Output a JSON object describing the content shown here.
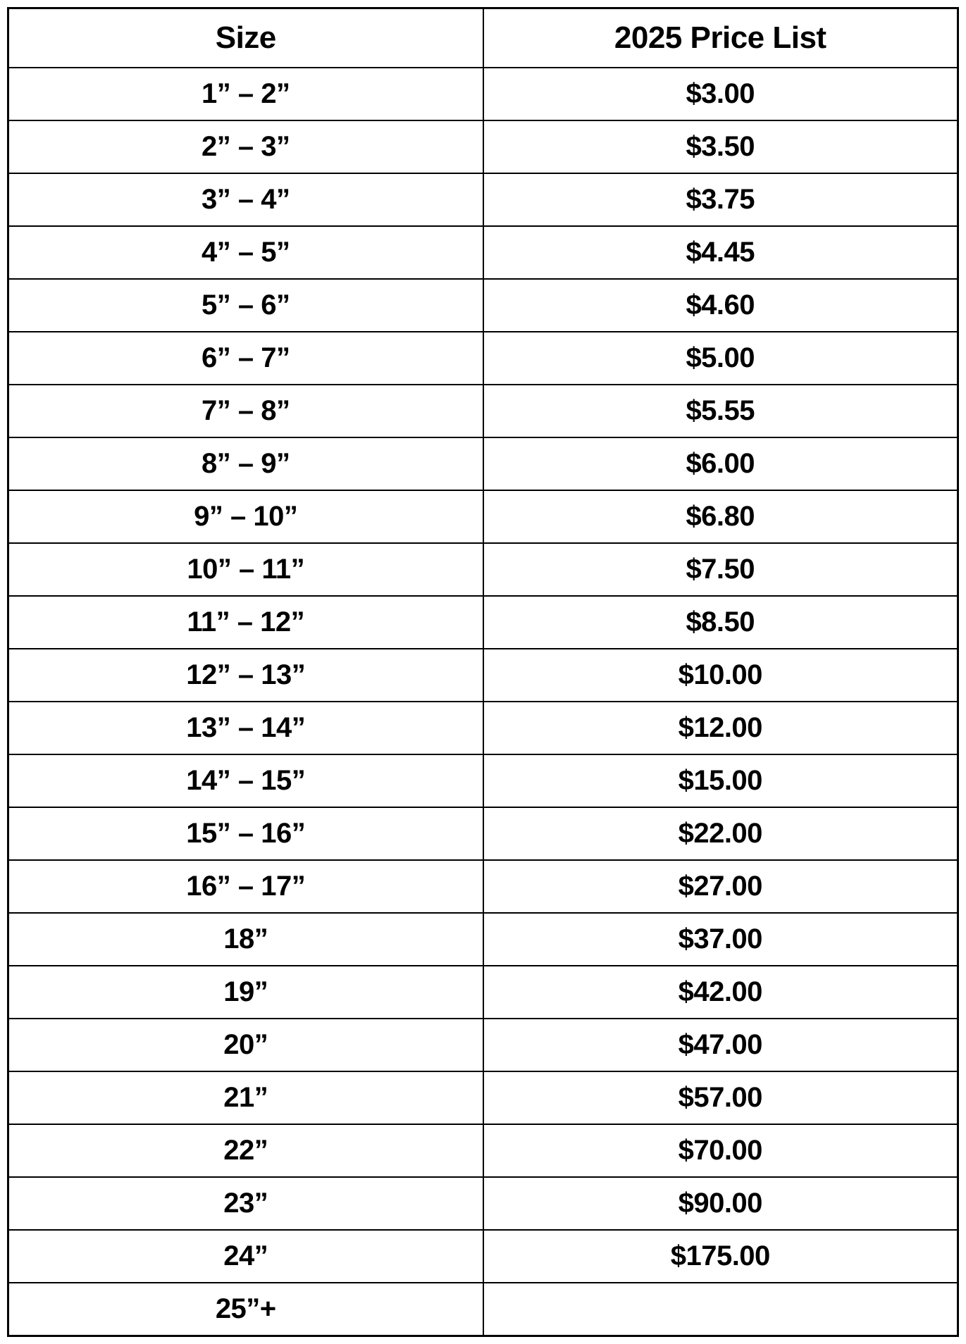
{
  "table": {
    "columns": [
      "Size",
      "2025 Price List"
    ],
    "rows": [
      [
        "1” – 2”",
        "$3.00"
      ],
      [
        "2” – 3”",
        "$3.50"
      ],
      [
        "3” – 4”",
        "$3.75"
      ],
      [
        "4” – 5”",
        "$4.45"
      ],
      [
        "5” – 6”",
        "$4.60"
      ],
      [
        "6” – 7”",
        "$5.00"
      ],
      [
        "7” – 8”",
        "$5.55"
      ],
      [
        "8” – 9”",
        "$6.00"
      ],
      [
        "9” – 10”",
        "$6.80"
      ],
      [
        "10” – 11”",
        "$7.50"
      ],
      [
        "11” – 12”",
        "$8.50"
      ],
      [
        "12” – 13”",
        "$10.00"
      ],
      [
        "13” – 14”",
        "$12.00"
      ],
      [
        "14” – 15”",
        "$15.00"
      ],
      [
        "15” – 16”",
        "$22.00"
      ],
      [
        "16” – 17”",
        "$27.00"
      ],
      [
        "18”",
        "$37.00"
      ],
      [
        "19”",
        "$42.00"
      ],
      [
        "20”",
        "$47.00"
      ],
      [
        "21”",
        "$57.00"
      ],
      [
        "22”",
        "$70.00"
      ],
      [
        "23”",
        "$90.00"
      ],
      [
        "24”",
        "$175.00"
      ],
      [
        "25”+",
        ""
      ]
    ],
    "styling": {
      "border_color": "#000000",
      "outer_border_width": 3,
      "inner_border_width": 2,
      "background_color": "#ffffff",
      "text_color": "#000000",
      "header_fontsize": 44,
      "cell_fontsize": 40,
      "font_weight": 900,
      "font_family": "Arial",
      "column_widths": [
        "50%",
        "50%"
      ],
      "text_align": "center"
    }
  }
}
